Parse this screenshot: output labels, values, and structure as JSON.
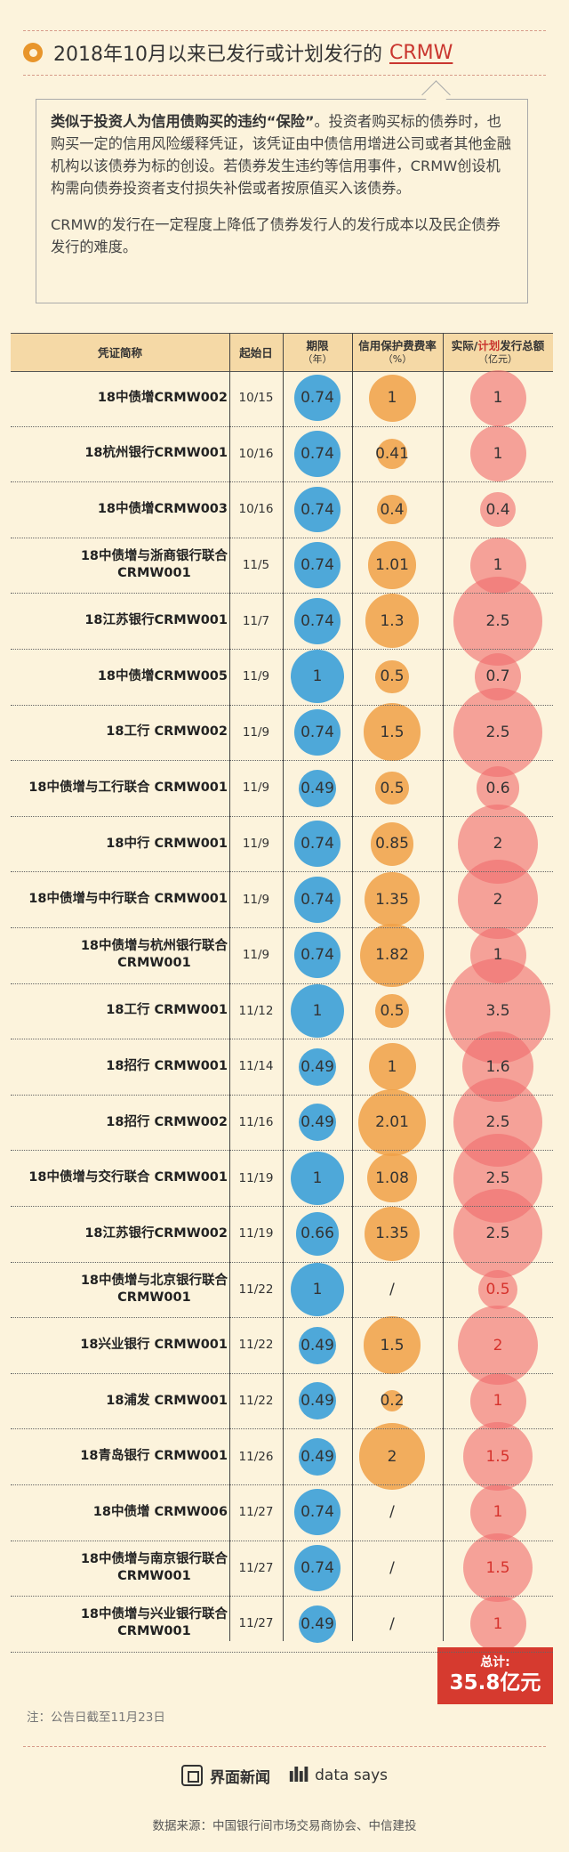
{
  "title": {
    "prefix": "2018年10月以来已发行或计划发行的",
    "highlight": "CRMW"
  },
  "intro": {
    "p1_bold": "类似于投资人为信用债购买的违约“保险”",
    "p1_rest": "。投资者购买标的债券时，也购买一定的信用风险缓释凭证，该凭证由中债信用增进公司或者其他金融机构以该债券为标的创设。若债券发生违约等信用事件，CRMW创设机构需向债券投资者支付损失补偿或者按原值买入该债券。",
    "p2": "CRMW的发行在一定程度上降低了债券发行人的发行成本以及民企债券发行的难度。"
  },
  "headers": {
    "name": "凭证简称",
    "date": "起始日",
    "term": "期限",
    "term_unit": "（年）",
    "fee": "信用保护费费率",
    "fee_unit": "（%）",
    "amount_a": "实际/",
    "amount_b": "计划",
    "amount_c": "发行总额",
    "amount_unit": "（亿元）"
  },
  "colors": {
    "term": "#4ea8d9",
    "fee": "#f0a44b",
    "amount": "#f07d7d",
    "planned_text": "#d6322c"
  },
  "chart_data": {
    "type": "table",
    "columns": [
      "凭证简称",
      "起始日",
      "期限（年）",
      "信用保护费费率（%）",
      "实际/计划发行总额（亿元）"
    ],
    "rows": [
      {
        "name": [
          "18中债增CRMW002"
        ],
        "date": "10/15",
        "term": 0.74,
        "fee": 1,
        "fee_label": "1",
        "amount": 1,
        "planned": false
      },
      {
        "name": [
          "18杭州银行CRMW001"
        ],
        "date": "10/16",
        "term": 0.74,
        "fee": 0.41,
        "fee_label": "0.41",
        "amount": 1,
        "planned": false
      },
      {
        "name": [
          "18中债增CRMW003"
        ],
        "date": "10/16",
        "term": 0.74,
        "fee": 0.4,
        "fee_label": "0.4",
        "amount": 0.4,
        "planned": false
      },
      {
        "name": [
          "18中债增与浙商银行联合",
          "CRMW001"
        ],
        "date": "11/5",
        "term": 0.74,
        "fee": 1.01,
        "fee_label": "1.01",
        "amount": 1,
        "planned": false
      },
      {
        "name": [
          "18江苏银行CRMW001"
        ],
        "date": "11/7",
        "term": 0.74,
        "fee": 1.3,
        "fee_label": "1.3",
        "amount": 2.5,
        "planned": false
      },
      {
        "name": [
          "18中债增CRMW005"
        ],
        "date": "11/9",
        "term": 1,
        "fee": 0.5,
        "fee_label": "0.5",
        "amount": 0.7,
        "planned": false
      },
      {
        "name": [
          "18工行 CRMW002"
        ],
        "date": "11/9",
        "term": 0.74,
        "fee": 1.5,
        "fee_label": "1.5",
        "amount": 2.5,
        "planned": false
      },
      {
        "name": [
          "18中债增与工行联合 CRMW001"
        ],
        "date": "11/9",
        "term": 0.49,
        "fee": 0.5,
        "fee_label": "0.5",
        "amount": 0.6,
        "planned": false
      },
      {
        "name": [
          "18中行 CRMW001"
        ],
        "date": "11/9",
        "term": 0.74,
        "fee": 0.85,
        "fee_label": "0.85",
        "amount": 2,
        "planned": false
      },
      {
        "name": [
          "18中债增与中行联合 CRMW001"
        ],
        "date": "11/9",
        "term": 0.74,
        "fee": 1.35,
        "fee_label": "1.35",
        "amount": 2,
        "planned": false
      },
      {
        "name": [
          "18中债增与杭州银行联合",
          "CRMW001"
        ],
        "date": "11/9",
        "term": 0.74,
        "fee": 1.82,
        "fee_label": "1.82",
        "amount": 1,
        "planned": false
      },
      {
        "name": [
          "18工行 CRMW001"
        ],
        "date": "11/12",
        "term": 1,
        "fee": 0.5,
        "fee_label": "0.5",
        "amount": 3.5,
        "planned": false
      },
      {
        "name": [
          "18招行 CRMW001"
        ],
        "date": "11/14",
        "term": 0.49,
        "fee": 1,
        "fee_label": "1",
        "amount": 1.6,
        "planned": false
      },
      {
        "name": [
          "18招行 CRMW002"
        ],
        "date": "11/16",
        "term": 0.49,
        "fee": 2.01,
        "fee_label": "2.01",
        "amount": 2.5,
        "planned": false
      },
      {
        "name": [
          "18中债增与交行联合 CRMW001"
        ],
        "date": "11/19",
        "term": 1,
        "fee": 1.08,
        "fee_label": "1.08",
        "amount": 2.5,
        "planned": false
      },
      {
        "name": [
          "18江苏银行CRMW002"
        ],
        "date": "11/19",
        "term": 0.66,
        "fee": 1.35,
        "fee_label": "1.35",
        "amount": 2.5,
        "planned": false
      },
      {
        "name": [
          "18中债增与北京银行联合",
          "CRMW001"
        ],
        "date": "11/22",
        "term": 1,
        "fee": null,
        "fee_label": "/",
        "amount": 0.5,
        "planned": true
      },
      {
        "name": [
          "18兴业银行 CRMW001"
        ],
        "date": "11/22",
        "term": 0.49,
        "fee": 1.5,
        "fee_label": "1.5",
        "amount": 2,
        "planned": true
      },
      {
        "name": [
          "18浦发 CRMW001"
        ],
        "date": "11/22",
        "term": 0.49,
        "fee": 0.2,
        "fee_label": "0.2",
        "amount": 1,
        "planned": true
      },
      {
        "name": [
          "18青岛银行 CRMW001"
        ],
        "date": "11/26",
        "term": 0.49,
        "fee": 2,
        "fee_label": "2",
        "amount": 1.5,
        "planned": true
      },
      {
        "name": [
          "18中债增 CRMW006"
        ],
        "date": "11/27",
        "term": 0.74,
        "fee": null,
        "fee_label": "/",
        "amount": 1,
        "planned": true
      },
      {
        "name": [
          "18中债增与南京银行联合",
          "CRMW001"
        ],
        "date": "11/27",
        "term": 0.74,
        "fee": null,
        "fee_label": "/",
        "amount": 1.5,
        "planned": true
      },
      {
        "name": [
          "18中债增与兴业银行联合",
          "CRMW001"
        ],
        "date": "11/27",
        "term": 0.49,
        "fee": null,
        "fee_label": "/",
        "amount": 1,
        "planned": true
      }
    ]
  },
  "total": {
    "label": "总计:",
    "value": "35.8亿元"
  },
  "note": "注：公告日截至11月23日",
  "brand": {
    "jiemian": "界面新闻",
    "datasays": "data says"
  },
  "source": "数据来源：中国银行间市场交易商协会、中信建投"
}
